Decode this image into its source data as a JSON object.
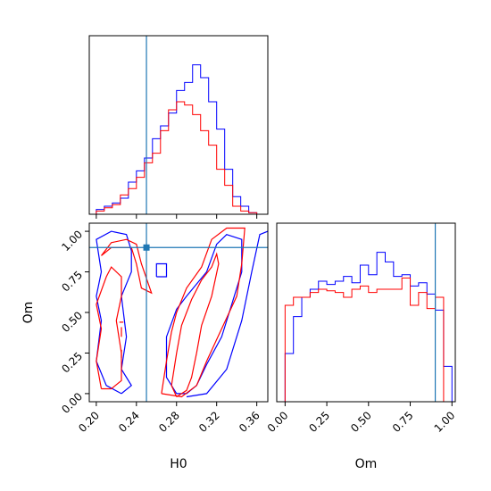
{
  "chart_data": {
    "type": "corner",
    "colors": {
      "series_blue": "#0000ff",
      "series_red": "#ff0000",
      "truth": "#1f77b4"
    },
    "truth": {
      "H0": 0.25,
      "Om": 0.9
    },
    "grid": false,
    "legend": "none",
    "xlabel": "H0",
    "ylabel_left": "Om",
    "xlabel_right": "Om",
    "hist_H0": {
      "xlim": [
        0.193,
        0.371
      ],
      "bin_edges": [
        0.2,
        0.208,
        0.216,
        0.224,
        0.232,
        0.24,
        0.248,
        0.256,
        0.264,
        0.272,
        0.28,
        0.288,
        0.296,
        0.304,
        0.312,
        0.32,
        0.328,
        0.336,
        0.344,
        0.352,
        0.36
      ],
      "series": [
        {
          "color": "blue",
          "values": [
            0.03,
            0.05,
            0.07,
            0.1,
            0.2,
            0.27,
            0.35,
            0.47,
            0.55,
            0.63,
            0.77,
            0.82,
            0.93,
            0.85,
            0.7,
            0.53,
            0.28,
            0.11,
            0.05,
            0.01
          ]
        },
        {
          "color": "red",
          "values": [
            0.02,
            0.04,
            0.06,
            0.12,
            0.16,
            0.23,
            0.32,
            0.38,
            0.52,
            0.65,
            0.7,
            0.68,
            0.62,
            0.52,
            0.43,
            0.28,
            0.18,
            0.05,
            0.02,
            0.01
          ]
        }
      ]
    },
    "hist_Om": {
      "xlim": [
        -0.05,
        1.02
      ],
      "xticks": [
        0.0,
        0.25,
        0.5,
        0.75,
        1.0
      ],
      "tick_labels": [
        "0.00",
        "0.25",
        "0.50",
        "0.75",
        "1.00"
      ],
      "bin_edges": [
        0.0,
        0.05,
        0.1,
        0.15,
        0.2,
        0.25,
        0.3,
        0.35,
        0.4,
        0.45,
        0.5,
        0.55,
        0.6,
        0.65,
        0.7,
        0.75,
        0.8,
        0.85,
        0.9,
        0.95,
        1.0
      ],
      "series": [
        {
          "color": "blue",
          "values": [
            0.3,
            0.53,
            0.65,
            0.7,
            0.75,
            0.73,
            0.75,
            0.78,
            0.74,
            0.85,
            0.79,
            0.93,
            0.87,
            0.78,
            0.79,
            0.72,
            0.74,
            0.67,
            0.57,
            0.22
          ]
        },
        {
          "color": "red",
          "values": [
            0.6,
            0.65,
            0.65,
            0.68,
            0.7,
            0.69,
            0.68,
            0.65,
            0.7,
            0.72,
            0.68,
            0.7,
            0.7,
            0.7,
            0.77,
            0.6,
            0.68,
            0.58,
            0.65,
            0.0
          ]
        }
      ]
    },
    "contour_panel": {
      "xlim": [
        0.193,
        0.371
      ],
      "ylim": [
        -0.05,
        1.05
      ],
      "xticks": [
        0.2,
        0.24,
        0.28,
        0.32,
        0.36
      ],
      "xtick_labels": [
        "0.20",
        "0.24",
        "0.28",
        "0.32",
        "0.36"
      ],
      "yticks": [
        0.0,
        0.25,
        0.5,
        0.75,
        1.0
      ],
      "ytick_labels": [
        "0.00",
        "0.25",
        "0.50",
        "0.75",
        "1.00"
      ],
      "contours": [
        {
          "color": "blue",
          "points": [
            [
              0.29,
              -0.02
            ],
            [
              0.31,
              0.0
            ],
            [
              0.33,
              0.15
            ],
            [
              0.345,
              0.45
            ],
            [
              0.355,
              0.75
            ],
            [
              0.363,
              0.98
            ],
            [
              0.371,
              1.0
            ]
          ]
        },
        {
          "color": "blue",
          "points": [
            [
              0.28,
              0.0
            ],
            [
              0.27,
              0.1
            ],
            [
              0.27,
              0.35
            ],
            [
              0.28,
              0.52
            ],
            [
              0.29,
              0.6
            ],
            [
              0.31,
              0.75
            ],
            [
              0.32,
              0.92
            ],
            [
              0.33,
              0.98
            ],
            [
              0.345,
              0.95
            ],
            [
              0.345,
              0.75
            ],
            [
              0.335,
              0.55
            ],
            [
              0.325,
              0.35
            ],
            [
              0.31,
              0.18
            ],
            [
              0.3,
              0.05
            ],
            [
              0.29,
              0.0
            ],
            [
              0.28,
              0.0
            ]
          ]
        },
        {
          "color": "blue",
          "points": [
            [
              0.26,
              0.72
            ],
            [
              0.27,
              0.72
            ],
            [
              0.27,
              0.8
            ],
            [
              0.26,
              0.8
            ],
            [
              0.26,
              0.72
            ]
          ]
        },
        {
          "color": "blue",
          "points": [
            [
              0.225,
              0.0
            ],
            [
              0.21,
              0.05
            ],
            [
              0.2,
              0.2
            ],
            [
              0.205,
              0.45
            ],
            [
              0.2,
              0.6
            ],
            [
              0.205,
              0.75
            ],
            [
              0.2,
              0.95
            ],
            [
              0.215,
              1.0
            ],
            [
              0.23,
              0.98
            ],
            [
              0.235,
              0.88
            ],
            [
              0.235,
              0.75
            ],
            [
              0.225,
              0.6
            ],
            [
              0.23,
              0.35
            ],
            [
              0.225,
              0.15
            ],
            [
              0.235,
              0.05
            ],
            [
              0.225,
              0.0
            ]
          ]
        },
        {
          "color": "red",
          "points": [
            [
              0.28,
              -0.02
            ],
            [
              0.275,
              0.05
            ],
            [
              0.28,
              0.25
            ],
            [
              0.285,
              0.42
            ],
            [
              0.295,
              0.58
            ],
            [
              0.305,
              0.7
            ],
            [
              0.315,
              0.78
            ],
            [
              0.32,
              0.86
            ],
            [
              0.322,
              0.8
            ],
            [
              0.315,
              0.6
            ],
            [
              0.305,
              0.42
            ],
            [
              0.3,
              0.25
            ],
            [
              0.295,
              0.1
            ],
            [
              0.29,
              0.02
            ],
            [
              0.28,
              -0.02
            ]
          ]
        },
        {
          "color": "red",
          "points": [
            [
              0.265,
              0.0
            ],
            [
              0.27,
              0.2
            ],
            [
              0.275,
              0.38
            ],
            [
              0.28,
              0.5
            ],
            [
              0.29,
              0.65
            ],
            [
              0.305,
              0.78
            ],
            [
              0.315,
              0.95
            ],
            [
              0.33,
              1.02
            ],
            [
              0.348,
              1.02
            ],
            [
              0.345,
              0.8
            ],
            [
              0.34,
              0.6
            ],
            [
              0.325,
              0.4
            ],
            [
              0.31,
              0.2
            ],
            [
              0.3,
              0.05
            ],
            [
              0.285,
              -0.02
            ],
            [
              0.265,
              0.0
            ]
          ]
        },
        {
          "color": "red",
          "points": [
            [
              0.205,
              0.03
            ],
            [
              0.2,
              0.2
            ],
            [
              0.205,
              0.4
            ],
            [
              0.2,
              0.55
            ],
            [
              0.21,
              0.72
            ],
            [
              0.215,
              0.78
            ],
            [
              0.225,
              0.72
            ],
            [
              0.225,
              0.6
            ],
            [
              0.22,
              0.45
            ],
            [
              0.225,
              0.25
            ],
            [
              0.225,
              0.08
            ],
            [
              0.215,
              0.03
            ],
            [
              0.205,
              0.03
            ]
          ]
        },
        {
          "color": "red",
          "points": [
            [
              0.205,
              0.85
            ],
            [
              0.215,
              0.9
            ],
            [
              0.235,
              0.9
            ],
            [
              0.24,
              0.8
            ],
            [
              0.245,
              0.65
            ],
            [
              0.255,
              0.62
            ],
            [
              0.245,
              0.8
            ],
            [
              0.24,
              0.92
            ],
            [
              0.23,
              0.95
            ],
            [
              0.215,
              0.93
            ],
            [
              0.205,
              0.85
            ]
          ]
        },
        {
          "color": "red",
          "points": [
            [
              0.225,
              0.35
            ],
            [
              0.225,
              0.41
            ]
          ]
        },
        {
          "color": "red",
          "points": [
            [
              0.225,
              0.22
            ],
            [
              0.225,
              0.27
            ]
          ]
        },
        {
          "color": "red",
          "points": [
            [
              0.223,
              0.44
            ],
            [
              0.227,
              0.44
            ]
          ]
        }
      ]
    }
  }
}
